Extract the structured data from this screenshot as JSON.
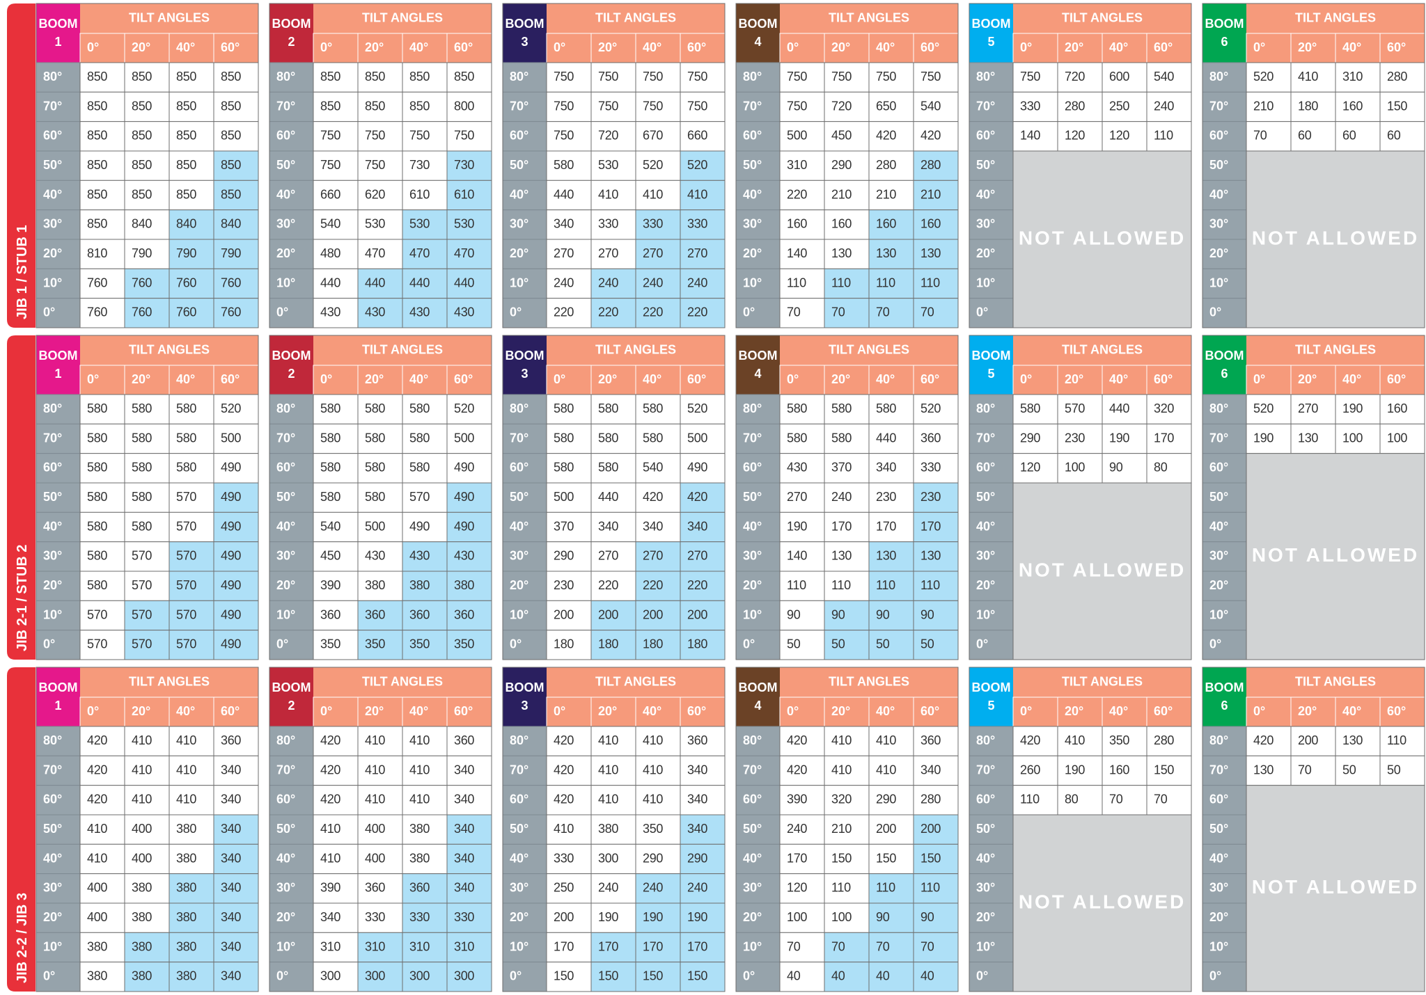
{
  "boom_label": "BOOM",
  "tilt_header": "TILT ANGLES",
  "not_allowed": "NOT ALLOWED",
  "col_labels": [
    "0°",
    "20°",
    "40°",
    "60°"
  ],
  "row_labels": [
    "80°",
    "70°",
    "60°",
    "50°",
    "40°",
    "30°",
    "20°",
    "10°",
    "0°"
  ],
  "booms": [
    {
      "number": "1",
      "color": "#e5188b"
    },
    {
      "number": "2",
      "color": "#c0283a"
    },
    {
      "number": "3",
      "color": "#2a1f5f"
    },
    {
      "number": "4",
      "color": "#6b4226"
    },
    {
      "number": "5",
      "color": "#00aeef"
    },
    {
      "number": "6",
      "color": "#00a651"
    }
  ],
  "groups": [
    {
      "label": "JIB 1 / STUB 1",
      "tables": [
        [
          [
            850,
            850,
            850,
            850
          ],
          [
            850,
            850,
            850,
            850
          ],
          [
            850,
            850,
            850,
            850
          ],
          [
            850,
            850,
            850,
            850
          ],
          [
            850,
            850,
            850,
            850
          ],
          [
            850,
            840,
            840,
            840
          ],
          [
            810,
            790,
            790,
            790
          ],
          [
            760,
            760,
            760,
            760
          ],
          [
            760,
            760,
            760,
            760
          ]
        ],
        [
          [
            850,
            850,
            850,
            850
          ],
          [
            850,
            850,
            850,
            800
          ],
          [
            750,
            750,
            750,
            750
          ],
          [
            750,
            750,
            730,
            730
          ],
          [
            660,
            620,
            610,
            610
          ],
          [
            540,
            530,
            530,
            530
          ],
          [
            480,
            470,
            470,
            470
          ],
          [
            440,
            440,
            440,
            440
          ],
          [
            430,
            430,
            430,
            430
          ]
        ],
        [
          [
            750,
            750,
            750,
            750
          ],
          [
            750,
            750,
            750,
            750
          ],
          [
            750,
            720,
            670,
            660
          ],
          [
            580,
            530,
            520,
            520
          ],
          [
            440,
            410,
            410,
            410
          ],
          [
            340,
            330,
            330,
            330
          ],
          [
            270,
            270,
            270,
            270
          ],
          [
            240,
            240,
            240,
            240
          ],
          [
            220,
            220,
            220,
            220
          ]
        ],
        [
          [
            750,
            750,
            750,
            750
          ],
          [
            750,
            720,
            650,
            540
          ],
          [
            500,
            450,
            420,
            420
          ],
          [
            310,
            290,
            280,
            280
          ],
          [
            220,
            210,
            210,
            210
          ],
          [
            160,
            160,
            160,
            160
          ],
          [
            140,
            130,
            130,
            130
          ],
          [
            110,
            110,
            110,
            110
          ],
          [
            70,
            70,
            70,
            70
          ]
        ],
        [
          [
            750,
            720,
            600,
            540
          ],
          [
            330,
            280,
            250,
            240
          ],
          [
            140,
            120,
            120,
            110
          ]
        ],
        [
          [
            520,
            410,
            310,
            280
          ],
          [
            210,
            180,
            160,
            150
          ],
          [
            70,
            60,
            60,
            60
          ]
        ]
      ]
    },
    {
      "label": "JIB 2-1 / STUB 2",
      "tables": [
        [
          [
            580,
            580,
            580,
            520
          ],
          [
            580,
            580,
            580,
            500
          ],
          [
            580,
            580,
            580,
            490
          ],
          [
            580,
            580,
            570,
            490
          ],
          [
            580,
            580,
            570,
            490
          ],
          [
            580,
            570,
            570,
            490
          ],
          [
            580,
            570,
            570,
            490
          ],
          [
            570,
            570,
            570,
            490
          ],
          [
            570,
            570,
            570,
            490
          ]
        ],
        [
          [
            580,
            580,
            580,
            520
          ],
          [
            580,
            580,
            580,
            500
          ],
          [
            580,
            580,
            580,
            490
          ],
          [
            580,
            580,
            570,
            490
          ],
          [
            540,
            500,
            490,
            490
          ],
          [
            450,
            430,
            430,
            430
          ],
          [
            390,
            380,
            380,
            380
          ],
          [
            360,
            360,
            360,
            360
          ],
          [
            350,
            350,
            350,
            350
          ]
        ],
        [
          [
            580,
            580,
            580,
            520
          ],
          [
            580,
            580,
            580,
            500
          ],
          [
            580,
            580,
            540,
            490
          ],
          [
            500,
            440,
            420,
            420
          ],
          [
            370,
            340,
            340,
            340
          ],
          [
            290,
            270,
            270,
            270
          ],
          [
            230,
            220,
            220,
            220
          ],
          [
            200,
            200,
            200,
            200
          ],
          [
            180,
            180,
            180,
            180
          ]
        ],
        [
          [
            580,
            580,
            580,
            520
          ],
          [
            580,
            580,
            440,
            360
          ],
          [
            430,
            370,
            340,
            330
          ],
          [
            270,
            240,
            230,
            230
          ],
          [
            190,
            170,
            170,
            170
          ],
          [
            140,
            130,
            130,
            130
          ],
          [
            110,
            110,
            110,
            110
          ],
          [
            90,
            90,
            90,
            90
          ],
          [
            50,
            50,
            50,
            50
          ]
        ],
        [
          [
            580,
            570,
            440,
            320
          ],
          [
            290,
            230,
            190,
            170
          ],
          [
            120,
            100,
            90,
            80
          ]
        ],
        [
          [
            520,
            270,
            190,
            160
          ],
          [
            190,
            130,
            100,
            100
          ]
        ]
      ]
    },
    {
      "label": "JIB 2-2 / JIB 3",
      "tables": [
        [
          [
            420,
            410,
            410,
            360
          ],
          [
            420,
            410,
            410,
            340
          ],
          [
            420,
            410,
            410,
            340
          ],
          [
            410,
            400,
            380,
            340
          ],
          [
            410,
            400,
            380,
            340
          ],
          [
            400,
            380,
            380,
            340
          ],
          [
            400,
            380,
            380,
            340
          ],
          [
            380,
            380,
            380,
            340
          ],
          [
            380,
            380,
            380,
            340
          ]
        ],
        [
          [
            420,
            410,
            410,
            360
          ],
          [
            420,
            410,
            410,
            340
          ],
          [
            420,
            410,
            410,
            340
          ],
          [
            410,
            400,
            380,
            340
          ],
          [
            410,
            400,
            380,
            340
          ],
          [
            390,
            360,
            360,
            340
          ],
          [
            340,
            330,
            330,
            330
          ],
          [
            310,
            310,
            310,
            310
          ],
          [
            300,
            300,
            300,
            300
          ]
        ],
        [
          [
            420,
            410,
            410,
            360
          ],
          [
            420,
            410,
            410,
            340
          ],
          [
            420,
            410,
            410,
            340
          ],
          [
            410,
            380,
            350,
            340
          ],
          [
            330,
            300,
            290,
            290
          ],
          [
            250,
            240,
            240,
            240
          ],
          [
            200,
            190,
            190,
            190
          ],
          [
            170,
            170,
            170,
            170
          ],
          [
            150,
            150,
            150,
            150
          ]
        ],
        [
          [
            420,
            410,
            410,
            360
          ],
          [
            420,
            410,
            410,
            340
          ],
          [
            390,
            320,
            290,
            280
          ],
          [
            240,
            210,
            200,
            200
          ],
          [
            170,
            150,
            150,
            150
          ],
          [
            120,
            110,
            110,
            110
          ],
          [
            100,
            100,
            90,
            90
          ],
          [
            70,
            70,
            70,
            70
          ],
          [
            40,
            40,
            40,
            40
          ]
        ],
        [
          [
            420,
            410,
            350,
            280
          ],
          [
            260,
            190,
            160,
            150
          ],
          [
            110,
            80,
            70,
            70
          ]
        ],
        [
          [
            420,
            200,
            130,
            110
          ],
          [
            130,
            70,
            50,
            50
          ]
        ]
      ]
    }
  ]
}
